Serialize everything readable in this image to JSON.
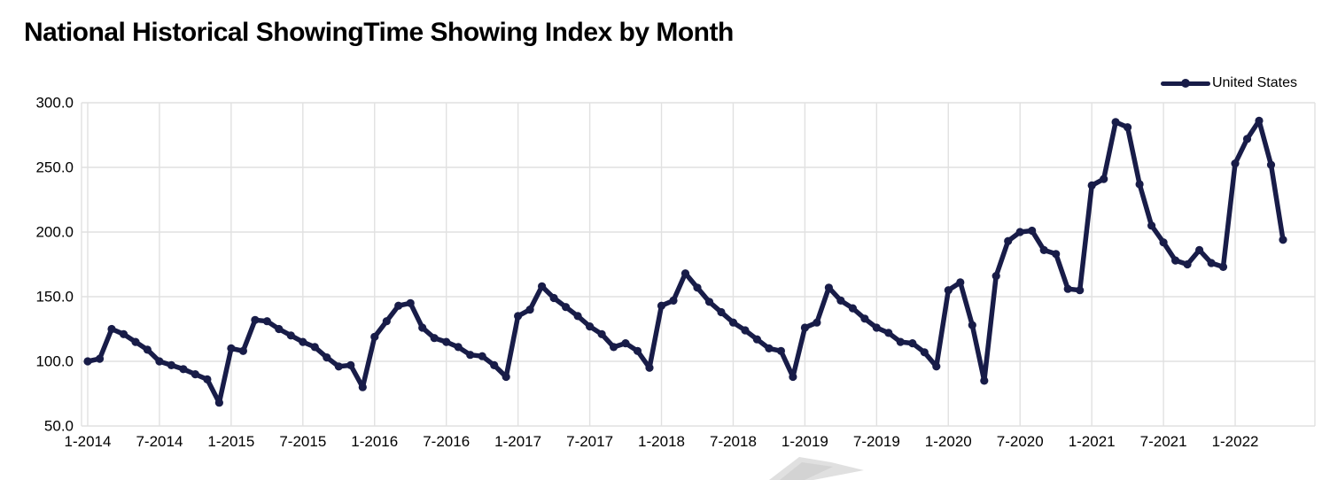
{
  "header": {
    "title": "National Historical ShowingTime Showing Index by Month"
  },
  "legend": {
    "items": [
      {
        "label": "United States",
        "color": "#181C48"
      }
    ]
  },
  "colors": {
    "series": "#181C48",
    "grid": "#E1E1E1",
    "axis_text": "#000000",
    "background": "#FFFFFF",
    "watermark": "#D6D6D6"
  },
  "chart_data": {
    "type": "line",
    "title": "National Historical ShowingTime Showing Index by Month",
    "grid": true,
    "legend_position": "top-right",
    "marker": "circle",
    "ylim": [
      50,
      300
    ],
    "y_ticks": [
      50,
      100,
      150,
      200,
      250,
      300
    ],
    "y_tick_labels": [
      "50.0",
      "100.0",
      "150.0",
      "200.0",
      "250.0",
      "300.0"
    ],
    "x_tick_labels": [
      "1-2014",
      "7-2014",
      "1-2015",
      "7-2015",
      "1-2016",
      "7-2016",
      "1-2017",
      "7-2017",
      "1-2018",
      "7-2018",
      "1-2019",
      "7-2019",
      "1-2020",
      "7-2020",
      "1-2021",
      "7-2021",
      "1-2022"
    ],
    "x_tick_every": 6,
    "x": [
      "1-2014",
      "2-2014",
      "3-2014",
      "4-2014",
      "5-2014",
      "6-2014",
      "7-2014",
      "8-2014",
      "9-2014",
      "10-2014",
      "11-2014",
      "12-2014",
      "1-2015",
      "2-2015",
      "3-2015",
      "4-2015",
      "5-2015",
      "6-2015",
      "7-2015",
      "8-2015",
      "9-2015",
      "10-2015",
      "11-2015",
      "12-2015",
      "1-2016",
      "2-2016",
      "3-2016",
      "4-2016",
      "5-2016",
      "6-2016",
      "7-2016",
      "8-2016",
      "9-2016",
      "10-2016",
      "11-2016",
      "12-2016",
      "1-2017",
      "2-2017",
      "3-2017",
      "4-2017",
      "5-2017",
      "6-2017",
      "7-2017",
      "8-2017",
      "9-2017",
      "10-2017",
      "11-2017",
      "12-2017",
      "1-2018",
      "2-2018",
      "3-2018",
      "4-2018",
      "5-2018",
      "6-2018",
      "7-2018",
      "8-2018",
      "9-2018",
      "10-2018",
      "11-2018",
      "12-2018",
      "1-2019",
      "2-2019",
      "3-2019",
      "4-2019",
      "5-2019",
      "6-2019",
      "7-2019",
      "8-2019",
      "9-2019",
      "10-2019",
      "11-2019",
      "12-2019",
      "1-2020",
      "2-2020",
      "3-2020",
      "4-2020",
      "5-2020",
      "6-2020",
      "7-2020",
      "8-2020",
      "9-2020",
      "10-2020",
      "11-2020",
      "12-2020",
      "1-2021",
      "2-2021",
      "3-2021",
      "4-2021",
      "5-2021",
      "6-2021",
      "7-2021",
      "8-2021",
      "9-2021",
      "10-2021",
      "11-2021",
      "12-2021",
      "1-2022",
      "2-2022",
      "3-2022",
      "4-2022",
      "5-2022"
    ],
    "series": [
      {
        "name": "United States",
        "values": [
          100,
          102,
          125,
          121,
          115,
          109,
          100,
          97,
          94,
          90,
          86,
          68,
          110,
          108,
          132,
          131,
          125,
          120,
          115,
          111,
          103,
          96,
          97,
          80,
          119,
          131,
          143,
          145,
          126,
          118,
          115,
          111,
          105,
          104,
          97,
          88,
          135,
          140,
          158,
          149,
          142,
          135,
          127,
          121,
          111,
          114,
          108,
          95,
          143,
          147,
          168,
          157,
          146,
          138,
          130,
          124,
          117,
          110,
          108,
          88,
          126,
          130,
          157,
          147,
          141,
          133,
          126,
          122,
          115,
          114,
          107,
          96,
          155,
          161,
          128,
          85,
          166,
          193,
          200,
          201,
          186,
          183,
          156,
          155,
          236,
          241,
          285,
          281,
          237,
          205,
          192,
          178,
          175,
          186,
          176,
          173,
          253,
          272,
          286,
          252,
          194
        ]
      }
    ]
  }
}
